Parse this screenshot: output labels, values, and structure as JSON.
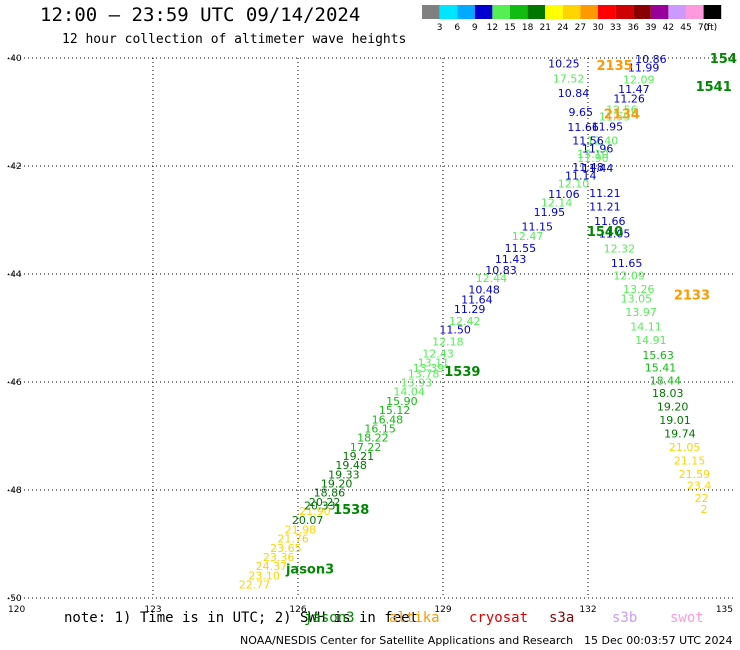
{
  "title": "12:00 – 23:59 UTC 09/14/2024",
  "subtitle": "12 hour collection of altimeter wave heights",
  "color_scale": {
    "unit": "(ft)",
    "bins": [
      {
        "label": "3",
        "color": "#808080"
      },
      {
        "label": "6",
        "color": "#00e5ff"
      },
      {
        "label": "9",
        "color": "#00aaff"
      },
      {
        "label": "12",
        "color": "#0000d0"
      },
      {
        "label": "15",
        "color": "#55ee55"
      },
      {
        "label": "18",
        "color": "#11bb11"
      },
      {
        "label": "21",
        "color": "#007700"
      },
      {
        "label": "24",
        "color": "#ffff00"
      },
      {
        "label": "27",
        "color": "#ffd400"
      },
      {
        "label": "30",
        "color": "#ff9900"
      },
      {
        "label": "33",
        "color": "#ff0000"
      },
      {
        "label": "36",
        "color": "#cc0000"
      },
      {
        "label": "39",
        "color": "#880000"
      },
      {
        "label": "42",
        "color": "#990099"
      },
      {
        "label": "45",
        "color": "#cc99ff"
      },
      {
        "label": "70",
        "color": "#ff99dd"
      },
      {
        "label": "",
        "color": "#000000"
      }
    ]
  },
  "note": "note: 1) Time is in UTC; 2) SWH is in feet",
  "satellites": [
    {
      "name": "jason3",
      "color": "#008800"
    },
    {
      "name": "altika",
      "color": "#ff9900"
    },
    {
      "name": "cryosat",
      "color": "#dd0000"
    },
    {
      "name": "s3a",
      "color": "#880000"
    },
    {
      "name": "s3b",
      "color": "#cc99ff"
    },
    {
      "name": "swot",
      "color": "#ff99dd"
    }
  ],
  "credit": "NOAA/NESDIS Center for Satellite Applications and Research",
  "timestamp": "15 Dec 00:03:57 UTC 2024",
  "chart_data": {
    "type": "scatter",
    "title": "12:00 – 23:59 UTC 09/14/2024",
    "xlim": [
      120,
      135
    ],
    "ylim": [
      -50,
      -40
    ],
    "x_ticks": [
      "120",
      "123",
      "126",
      "129",
      "132",
      "135"
    ],
    "y_ticks": [
      "-40",
      "-42",
      "-44",
      "-46",
      "-48",
      "-50"
    ],
    "grid": true,
    "time_labels": [
      {
        "text": "2135",
        "lon": 132.55,
        "lat": -40.13,
        "color": "#ff9900"
      },
      {
        "text": "2134",
        "lon": 132.7,
        "lat": -41.03,
        "color": "#ff9900"
      },
      {
        "text": "2133",
        "lon": 134.15,
        "lat": -44.38,
        "color": "#ff9900"
      },
      {
        "text": "1541",
        "lon": 134.6,
        "lat": -40.52,
        "color": "#008800"
      },
      {
        "text": "154",
        "lon": 134.8,
        "lat": -40.0,
        "color": "#008800"
      },
      {
        "text": "1540",
        "lon": 132.35,
        "lat": -43.2,
        "color": "#008800"
      },
      {
        "text": "1539",
        "lon": 129.4,
        "lat": -45.8,
        "color": "#008800"
      },
      {
        "text": "1538",
        "lon": 127.1,
        "lat": -48.35,
        "color": "#008800"
      },
      {
        "text": "jason3",
        "lon": 126.25,
        "lat": -49.45,
        "color": "#008800"
      }
    ],
    "series": [
      {
        "points": [
          {
            "lon": 125.1,
            "lat": -49.75,
            "swh": "22.77",
            "color": "#ffd400"
          },
          {
            "lon": 125.3,
            "lat": -49.58,
            "swh": "23.10",
            "color": "#ffd400"
          },
          {
            "lon": 125.45,
            "lat": -49.41,
            "swh": "24.37",
            "color": "#ffd400"
          },
          {
            "lon": 125.6,
            "lat": -49.24,
            "swh": "23.36",
            "color": "#ffd400"
          },
          {
            "lon": 125.75,
            "lat": -49.07,
            "swh": "23.65",
            "color": "#ffd400"
          },
          {
            "lon": 125.9,
            "lat": -48.9,
            "swh": "21.76",
            "color": "#ffd400"
          },
          {
            "lon": 126.05,
            "lat": -48.73,
            "swh": "21.98",
            "color": "#ffd400"
          },
          {
            "lon": 126.2,
            "lat": -48.56,
            "swh": "20.07",
            "color": "#007700"
          },
          {
            "lon": 126.35,
            "lat": -48.39,
            "swh": "21.90",
            "color": "#ffd400"
          },
          {
            "lon": 126.45,
            "lat": -48.29,
            "swh": "20.33",
            "color": "#007700"
          },
          {
            "lon": 126.55,
            "lat": -48.22,
            "swh": "20.22",
            "color": "#007700"
          },
          {
            "lon": 126.65,
            "lat": -48.05,
            "swh": "18.86",
            "color": "#007700"
          },
          {
            "lon": 126.8,
            "lat": -47.88,
            "swh": "19.20",
            "color": "#007700"
          },
          {
            "lon": 126.95,
            "lat": -47.71,
            "swh": "19.33",
            "color": "#007700"
          },
          {
            "lon": 127.1,
            "lat": -47.54,
            "swh": "19.48",
            "color": "#007700"
          },
          {
            "lon": 127.25,
            "lat": -47.37,
            "swh": "19.21",
            "color": "#007700"
          },
          {
            "lon": 127.4,
            "lat": -47.2,
            "swh": "17.22",
            "color": "#11bb11"
          },
          {
            "lon": 127.55,
            "lat": -47.03,
            "swh": "18.22",
            "color": "#11bb11"
          },
          {
            "lon": 127.7,
            "lat": -46.86,
            "swh": "16.15",
            "color": "#11bb11"
          },
          {
            "lon": 127.85,
            "lat": -46.69,
            "swh": "16.48",
            "color": "#11bb11"
          },
          {
            "lon": 128.0,
            "lat": -46.52,
            "swh": "15.12",
            "color": "#11bb11"
          },
          {
            "lon": 128.15,
            "lat": -46.35,
            "swh": "15.90",
            "color": "#11bb11"
          },
          {
            "lon": 128.3,
            "lat": -46.18,
            "swh": "14.04",
            "color": "#55ee55"
          },
          {
            "lon": 128.45,
            "lat": -46.01,
            "swh": "13.93",
            "color": "#55ee55"
          },
          {
            "lon": 128.6,
            "lat": -45.84,
            "swh": "13.78",
            "color": "#55ee55"
          },
          {
            "lon": 128.7,
            "lat": -45.74,
            "swh": "13.39",
            "color": "#55ee55"
          },
          {
            "lon": 128.8,
            "lat": -45.64,
            "swh": "13.11",
            "color": "#55ee55"
          },
          {
            "lon": 128.9,
            "lat": -45.47,
            "swh": "12.43",
            "color": "#55ee55"
          },
          {
            "lon": 129.1,
            "lat": -45.25,
            "swh": "12.18",
            "color": "#55ee55"
          },
          {
            "lon": 129.25,
            "lat": -45.03,
            "swh": "11.50",
            "color": "#0000d0"
          },
          {
            "lon": 129.45,
            "lat": -44.87,
            "swh": "12.42",
            "color": "#55ee55"
          },
          {
            "lon": 129.55,
            "lat": -44.65,
            "swh": "11.29",
            "color": "#0000d0"
          },
          {
            "lon": 129.7,
            "lat": -44.47,
            "swh": "11.64",
            "color": "#0000d0"
          },
          {
            "lon": 129.85,
            "lat": -44.29,
            "swh": "10.48",
            "color": "#0000d0"
          },
          {
            "lon": 130.0,
            "lat": -44.07,
            "swh": "12.44",
            "color": "#55ee55"
          },
          {
            "lon": 130.2,
            "lat": -43.93,
            "swh": "10.83",
            "color": "#0000d0"
          },
          {
            "lon": 130.4,
            "lat": -43.72,
            "swh": "11.43",
            "color": "#0000d0"
          },
          {
            "lon": 130.6,
            "lat": -43.52,
            "swh": "11.55",
            "color": "#0000d0"
          },
          {
            "lon": 130.75,
            "lat": -43.3,
            "swh": "12.47",
            "color": "#55ee55"
          },
          {
            "lon": 130.95,
            "lat": -43.12,
            "swh": "11.15",
            "color": "#0000d0"
          },
          {
            "lon": 131.2,
            "lat": -42.85,
            "swh": "11.95",
            "color": "#0000d0"
          },
          {
            "lon": 131.35,
            "lat": -42.68,
            "swh": "12.14",
            "color": "#55ee55"
          },
          {
            "lon": 131.5,
            "lat": -42.52,
            "swh": "11.06",
            "color": "#0000d0"
          },
          {
            "lon": 131.7,
            "lat": -42.32,
            "swh": "12.10",
            "color": "#55ee55"
          },
          {
            "lon": 131.85,
            "lat": -42.18,
            "swh": "11.14",
            "color": "#0000d0"
          },
          {
            "lon": 132.0,
            "lat": -42.02,
            "swh": "11.48",
            "color": "#0000d0"
          },
          {
            "lon": 132.1,
            "lat": -41.85,
            "swh": "11.90",
            "color": "#55ee55"
          },
          {
            "lon": 132.2,
            "lat": -41.68,
            "swh": "11.96",
            "color": "#0000d0"
          },
          {
            "lon": 132.3,
            "lat": -41.53,
            "swh": "12.40",
            "color": "#55ee55"
          },
          {
            "lon": 132.4,
            "lat": -41.27,
            "swh": "11.95",
            "color": "#0000d0"
          },
          {
            "lon": 132.55,
            "lat": -41.08,
            "swh": "11.59",
            "color": "#55ee55"
          },
          {
            "lon": 132.7,
            "lat": -40.95,
            "swh": "12.56",
            "color": "#55ee55"
          },
          {
            "lon": 132.85,
            "lat": -40.75,
            "swh": "11.26",
            "color": "#0000d0"
          },
          {
            "lon": 132.95,
            "lat": -40.57,
            "swh": "11.47",
            "color": "#0000d0"
          },
          {
            "lon": 133.05,
            "lat": -40.4,
            "swh": "12.09",
            "color": "#55ee55"
          },
          {
            "lon": 133.15,
            "lat": -40.18,
            "swh": "11.99",
            "color": "#0000d0"
          },
          {
            "lon": 133.3,
            "lat": -40.02,
            "swh": "10.86",
            "color": "#0000d0"
          }
        ]
      },
      {
        "points": [
          {
            "lon": 131.5,
            "lat": -40.1,
            "swh": "10.25",
            "color": "#0000d0"
          },
          {
            "lon": 131.6,
            "lat": -40.38,
            "swh": "17.52",
            "color": "#55ee55"
          },
          {
            "lon": 131.7,
            "lat": -40.65,
            "swh": "10.84",
            "color": "#0000d0"
          },
          {
            "lon": 131.85,
            "lat": -41.0,
            "swh": "9.65",
            "color": "#0000d0"
          },
          {
            "lon": 131.9,
            "lat": -41.28,
            "swh": "11.66",
            "color": "#0000d0"
          },
          {
            "lon": 132.0,
            "lat": -41.53,
            "swh": "11.56",
            "color": "#0000d0"
          },
          {
            "lon": 132.1,
            "lat": -41.78,
            "swh": "13.10",
            "color": "#55ee55"
          },
          {
            "lon": 132.2,
            "lat": -42.04,
            "swh": "11.44",
            "color": "#0000d0"
          },
          {
            "lon": 132.35,
            "lat": -42.5,
            "swh": "11.21",
            "color": "#0000d0"
          },
          {
            "lon": 132.35,
            "lat": -42.75,
            "swh": "11.21",
            "color": "#0000d0"
          },
          {
            "lon": 132.45,
            "lat": -43.02,
            "swh": "11.66",
            "color": "#0000d0"
          },
          {
            "lon": 132.55,
            "lat": -43.25,
            "swh": "11.05",
            "color": "#0000d0"
          },
          {
            "lon": 132.65,
            "lat": -43.53,
            "swh": "12.32",
            "color": "#55ee55"
          },
          {
            "lon": 132.8,
            "lat": -43.8,
            "swh": "11.65",
            "color": "#0000d0"
          },
          {
            "lon": 132.85,
            "lat": -44.03,
            "swh": "12.09",
            "color": "#55ee55"
          },
          {
            "lon": 133.05,
            "lat": -44.28,
            "swh": "13.26",
            "color": "#55ee55"
          },
          {
            "lon": 133.0,
            "lat": -44.45,
            "swh": "13.05",
            "color": "#55ee55"
          },
          {
            "lon": 133.1,
            "lat": -44.7,
            "swh": "13.97",
            "color": "#55ee55"
          },
          {
            "lon": 133.2,
            "lat": -44.97,
            "swh": "14.11",
            "color": "#55ee55"
          },
          {
            "lon": 133.3,
            "lat": -45.22,
            "swh": "14.91",
            "color": "#55ee55"
          },
          {
            "lon": 133.45,
            "lat": -45.5,
            "swh": "15.63",
            "color": "#11bb11"
          },
          {
            "lon": 133.5,
            "lat": -45.73,
            "swh": "15.41",
            "color": "#11bb11"
          },
          {
            "lon": 133.6,
            "lat": -45.97,
            "swh": "18.44",
            "color": "#11bb11"
          },
          {
            "lon": 133.65,
            "lat": -46.2,
            "swh": "18.03",
            "color": "#007700"
          },
          {
            "lon": 133.75,
            "lat": -46.45,
            "swh": "19.20",
            "color": "#007700"
          },
          {
            "lon": 133.8,
            "lat": -46.7,
            "swh": "19.01",
            "color": "#007700"
          },
          {
            "lon": 133.9,
            "lat": -46.95,
            "swh": "19.74",
            "color": "#007700"
          },
          {
            "lon": 134.0,
            "lat": -47.2,
            "swh": "21.05",
            "color": "#ffd400"
          },
          {
            "lon": 134.1,
            "lat": -47.45,
            "swh": "21.15",
            "color": "#ffd400"
          },
          {
            "lon": 134.2,
            "lat": -47.7,
            "swh": "21.59",
            "color": "#ffd400"
          },
          {
            "lon": 134.3,
            "lat": -47.92,
            "swh": "23.4",
            "color": "#ffd400"
          },
          {
            "lon": 134.35,
            "lat": -48.15,
            "swh": "22",
            "color": "#ffd400"
          },
          {
            "lon": 134.4,
            "lat": -48.35,
            "swh": "2",
            "color": "#ffd400"
          }
        ]
      }
    ]
  }
}
